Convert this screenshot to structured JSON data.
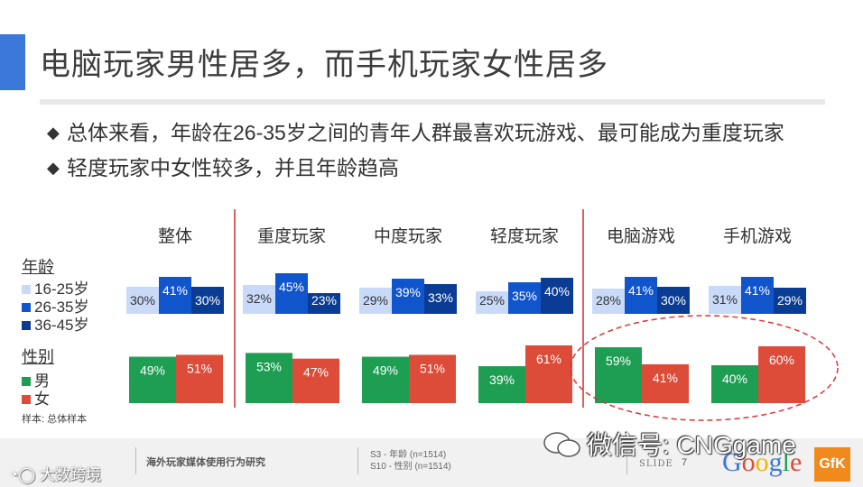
{
  "title": "电脑玩家男性居多，而手机玩家女性居多",
  "bullets": [
    "总体来看，年龄在26-35岁之间的青年人群最喜欢玩游戏、最可能成为重度玩家",
    "轻度玩家中女性较多，并且年龄趋高"
  ],
  "bullet_marker": "◆",
  "legend": {
    "age_heading": "年龄",
    "age_items": [
      "16-25岁",
      "26-35岁",
      "36-45岁"
    ],
    "gender_heading": "性别",
    "gender_items": [
      "男",
      "女"
    ]
  },
  "sample_note": "样本: 总体样本",
  "colors": {
    "age_16_25": "#c9daf8",
    "age_26_35": "#1155cc",
    "age_36_45": "#0b3c94",
    "male": "#1e9e53",
    "female": "#dd4b39",
    "separator": "#e06060",
    "circle": "#dd3333"
  },
  "chart_data": [
    {
      "type": "bar",
      "title": "年龄",
      "categories": [
        "整体",
        "重度玩家",
        "中度玩家",
        "轻度玩家",
        "电脑游戏",
        "手机游戏"
      ],
      "series": [
        {
          "name": "16-25岁",
          "values": [
            30,
            32,
            29,
            25,
            28,
            31
          ],
          "labels": [
            "30%",
            "32%",
            "29%",
            "25%",
            "28%",
            "31%"
          ]
        },
        {
          "name": "26-35岁",
          "values": [
            41,
            45,
            39,
            35,
            41,
            41
          ],
          "labels": [
            "41%",
            "45%",
            "39%",
            "35%",
            "41%",
            "41%"
          ]
        },
        {
          "name": "36-45岁",
          "values": [
            30,
            23,
            33,
            40,
            30,
            29
          ],
          "labels": [
            "30%",
            "23%",
            "33%",
            "40%",
            "30%",
            "29%"
          ]
        }
      ]
    },
    {
      "type": "bar",
      "title": "性别",
      "categories": [
        "整体",
        "重度玩家",
        "中度玩家",
        "轻度玩家",
        "电脑游戏",
        "手机游戏"
      ],
      "series": [
        {
          "name": "男",
          "values": [
            49,
            53,
            49,
            39,
            59,
            40
          ],
          "labels": [
            "49%",
            "53%",
            "49%",
            "39%",
            "59%",
            "40%"
          ]
        },
        {
          "name": "女",
          "values": [
            51,
            47,
            51,
            61,
            41,
            60
          ],
          "labels": [
            "51%",
            "47%",
            "51%",
            "61%",
            "41%",
            "60%"
          ]
        }
      ]
    }
  ],
  "footer": {
    "report_title": "海外玩家媒体使用行为研究",
    "source_lines": [
      "S3 - 年龄 (n=1514)",
      "S10 - 性别 (n=1514)"
    ],
    "slide_label": "SLIDE",
    "slide_number": "7",
    "google_logo": "Google",
    "gfk_logo": "GfK"
  },
  "watermark": "微信号: CNGgame",
  "brand_watermark": "大数跨境"
}
